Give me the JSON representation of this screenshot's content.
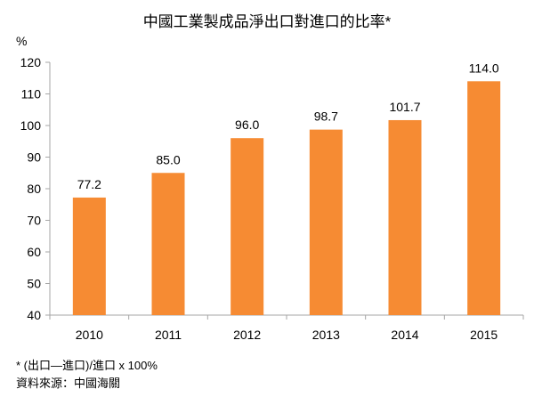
{
  "chart_data": {
    "type": "bar",
    "title": "中國工業製成品淨出口對進口的比率*",
    "ylabel": "%",
    "categories": [
      "2010",
      "2011",
      "2012",
      "2013",
      "2014",
      "2015"
    ],
    "values": [
      77.2,
      85.0,
      96.0,
      98.7,
      101.7,
      114.0
    ],
    "data_labels": [
      "77.2",
      "85.0",
      "96.0",
      "98.7",
      "101.7",
      "114.0"
    ],
    "ylim": [
      40,
      120
    ],
    "yticks": [
      40,
      50,
      60,
      70,
      80,
      90,
      100,
      110,
      120
    ],
    "grid": false,
    "bar_color": "#F68B33"
  },
  "footnotes": {
    "formula": "* (出口—進口)/進口 x 100%",
    "source": "資料來源：中國海關"
  }
}
